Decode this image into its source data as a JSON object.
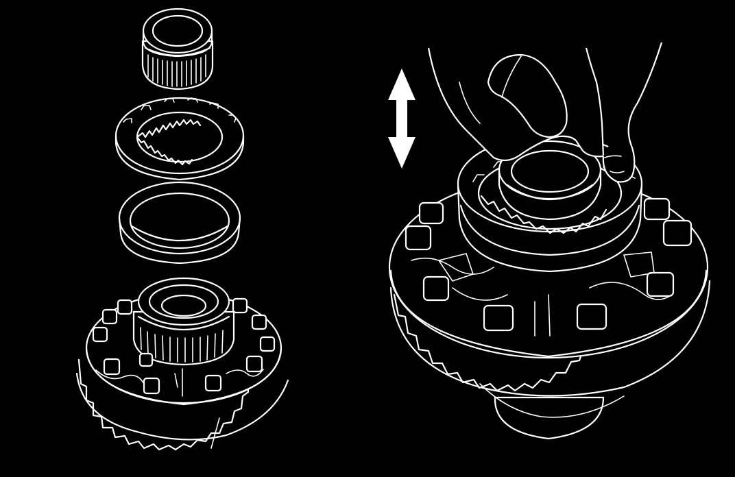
{
  "figure": {
    "background": "#000000",
    "line_color": "#ffffff",
    "panels": [
      {
        "name": "exploded-view",
        "parts": [
          "bearing-cone",
          "adjusting-nut",
          "bearing-cup",
          "differential-case-with-ring-gear"
        ]
      },
      {
        "name": "installed-view",
        "parts": [
          "hand",
          "bearing-cup-installed",
          "adjusting-nut-installed",
          "differential-case-with-ring-gear"
        ],
        "indicator": "double-headed-vertical-arrow"
      }
    ]
  }
}
